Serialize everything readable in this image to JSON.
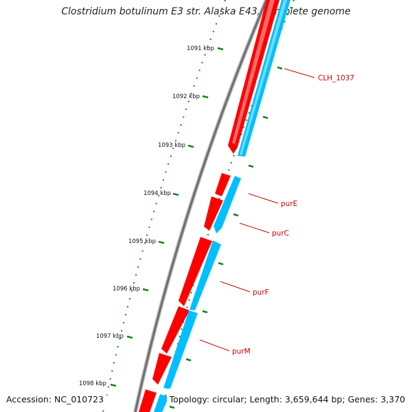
{
  "title": "Clostridium botulinum E3 str. Alaska E43, complete genome",
  "accession": "Accession: NC_010723",
  "summary": "Topology: circular; Length: 3,659,644 bp; Genes: 3,370",
  "ruler_labels": [
    "1091 kbp",
    "1092 kbp",
    "1093 kbp",
    "1094 kbp",
    "1095 kbp",
    "1096 kbp",
    "1097 kbp",
    "1098 kbp"
  ],
  "gene_labels": [
    "CLH_1037",
    "purE",
    "purC",
    "purF",
    "purM"
  ],
  "colors": {
    "forward_strand": "#ff0000",
    "reverse_strand": "#00bfff",
    "backbone": "#7f7f7f",
    "ruler_ticks": "#1a7f1a",
    "gene_label": "#cc0000"
  }
}
